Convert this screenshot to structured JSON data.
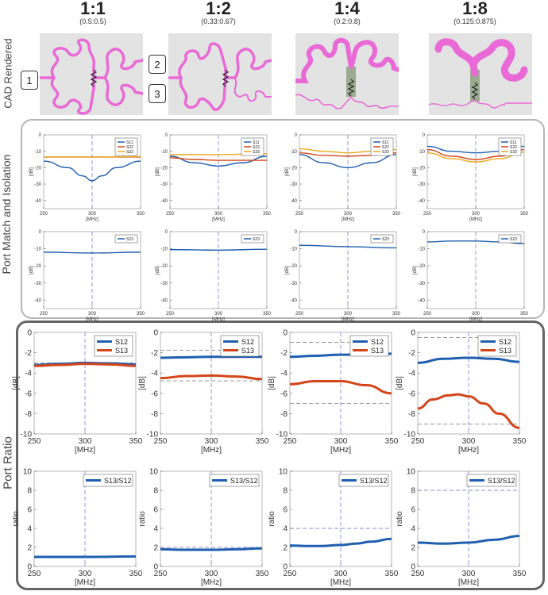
{
  "columns": [
    {
      "ratio": "1:1",
      "split": "(0.5:0.5)"
    },
    {
      "ratio": "1:2",
      "split": "(0.33:0.67)"
    },
    {
      "ratio": "1:4",
      "split": "(0.2:0.8)"
    },
    {
      "ratio": "1:8",
      "split": "(0.125:0.875)"
    }
  ],
  "rows": {
    "cad_label": "CAD Rendered",
    "match_label": "Port Match and Isolation",
    "ratio_label": "Port Ratio"
  },
  "ports": [
    "1",
    "2",
    "3"
  ],
  "colors": {
    "S11": "#1f5fb0",
    "S22": "#d4451a",
    "S33": "#e8a81c",
    "S23": "#1f5fb0",
    "S12": "#1f5fb0",
    "S13": "#d4451a",
    "ratio": "#1f5fb0",
    "trace": "#e96ad6",
    "guide": "#8888dd",
    "panel_border_1": "#b5b5b5",
    "panel_border_2": "#666666"
  },
  "chart_data": [
    {
      "id": "match_1_1",
      "type": "line",
      "xlabel": "[MHz]",
      "ylabel": "[dB]",
      "xlim": [
        250,
        350
      ],
      "ylim": [
        -45,
        0
      ],
      "xticks": [
        250,
        300,
        350
      ],
      "yticks": [
        0,
        -10,
        -20,
        -30,
        -40
      ],
      "vline": 300,
      "legend": "top-right",
      "series": [
        {
          "name": "S11",
          "x": [
            250,
            275,
            290,
            300,
            310,
            325,
            350
          ],
          "y": [
            -16,
            -20,
            -25,
            -28,
            -25,
            -20,
            -16
          ]
        },
        {
          "name": "S22",
          "x": [
            250,
            300,
            350
          ],
          "y": [
            -13.5,
            -13.5,
            -13.5
          ]
        },
        {
          "name": "S33",
          "x": [
            250,
            300,
            350
          ],
          "y": [
            -13.5,
            -13.5,
            -13.3
          ]
        }
      ]
    },
    {
      "id": "match_1_2",
      "type": "line",
      "xlabel": "[MHz]",
      "ylabel": "[dB]",
      "xlim": [
        250,
        350
      ],
      "ylim": [
        -45,
        0
      ],
      "xticks": [
        250,
        300,
        350
      ],
      "yticks": [
        0,
        -10,
        -20,
        -30,
        -40
      ],
      "vline": 300,
      "legend": "top-right",
      "series": [
        {
          "name": "S11",
          "x": [
            250,
            275,
            300,
            325,
            350
          ],
          "y": [
            -13,
            -17,
            -19,
            -17,
            -13
          ]
        },
        {
          "name": "S22",
          "x": [
            250,
            275,
            300,
            325,
            350
          ],
          "y": [
            -14,
            -15,
            -15.5,
            -15.5,
            -15.5
          ]
        },
        {
          "name": "S33",
          "x": [
            250,
            300,
            350
          ],
          "y": [
            -12,
            -12,
            -11.5
          ]
        }
      ]
    },
    {
      "id": "match_1_4",
      "type": "line",
      "xlabel": "[MHz]",
      "ylabel": "[dB]",
      "xlim": [
        250,
        350
      ],
      "ylim": [
        -45,
        0
      ],
      "xticks": [
        250,
        300,
        350
      ],
      "yticks": [
        0,
        -10,
        -20,
        -30,
        -40
      ],
      "vline": 300,
      "legend": "top-right",
      "series": [
        {
          "name": "S11",
          "x": [
            250,
            275,
            300,
            325,
            350
          ],
          "y": [
            -12,
            -17,
            -20,
            -17,
            -12
          ]
        },
        {
          "name": "S22",
          "x": [
            250,
            275,
            300,
            325,
            350
          ],
          "y": [
            -11,
            -12.5,
            -13,
            -12.5,
            -11
          ]
        },
        {
          "name": "S33",
          "x": [
            250,
            275,
            300,
            325,
            350
          ],
          "y": [
            -8.5,
            -10,
            -11,
            -10,
            -9
          ]
        }
      ]
    },
    {
      "id": "match_1_8",
      "type": "line",
      "xlabel": "[MHz]",
      "ylabel": "[dB]",
      "xlim": [
        250,
        350
      ],
      "ylim": [
        -45,
        0
      ],
      "xticks": [
        250,
        300,
        350
      ],
      "yticks": [
        0,
        -10,
        -20,
        -30,
        -40
      ],
      "vline": 300,
      "legend": "top-right",
      "series": [
        {
          "name": "S11",
          "x": [
            250,
            275,
            300,
            325,
            350
          ],
          "y": [
            -7,
            -10,
            -11,
            -10,
            -7
          ]
        },
        {
          "name": "S22",
          "x": [
            250,
            275,
            300,
            325,
            350
          ],
          "y": [
            -9,
            -13,
            -15,
            -13,
            -9
          ]
        },
        {
          "name": "S33",
          "x": [
            250,
            275,
            300,
            325,
            350
          ],
          "y": [
            -11,
            -14.5,
            -16.5,
            -14.5,
            -10.5
          ]
        }
      ]
    },
    {
      "id": "iso_1_1",
      "type": "line",
      "xlabel": "[MHz]",
      "ylabel": "[dB]",
      "xlim": [
        250,
        350
      ],
      "ylim": [
        -45,
        0
      ],
      "xticks": [
        250,
        300,
        350
      ],
      "yticks": [
        0,
        -10,
        -20,
        -30,
        -40
      ],
      "vline": 300,
      "legend": "top-right",
      "series": [
        {
          "name": "S23",
          "x": [
            250,
            300,
            350
          ],
          "y": [
            -12,
            -12.5,
            -12
          ]
        }
      ]
    },
    {
      "id": "iso_1_2",
      "type": "line",
      "xlabel": "[MHz]",
      "ylabel": "[dB]",
      "xlim": [
        250,
        350
      ],
      "ylim": [
        -45,
        0
      ],
      "xticks": [
        250,
        300,
        350
      ],
      "yticks": [
        0,
        -10,
        -20,
        -30,
        -40
      ],
      "vline": 300,
      "legend": "top-right",
      "series": [
        {
          "name": "S23",
          "x": [
            250,
            300,
            350
          ],
          "y": [
            -10.5,
            -10.8,
            -10.3
          ]
        }
      ]
    },
    {
      "id": "iso_1_4",
      "type": "line",
      "xlabel": "[MHz]",
      "ylabel": "[dB]",
      "xlim": [
        250,
        350
      ],
      "ylim": [
        -45,
        0
      ],
      "xticks": [
        250,
        300,
        350
      ],
      "yticks": [
        0,
        -10,
        -20,
        -30,
        -40
      ],
      "vline": 300,
      "legend": "top-right",
      "series": [
        {
          "name": "S23",
          "x": [
            250,
            300,
            350
          ],
          "y": [
            -8,
            -8.8,
            -9.5
          ]
        }
      ]
    },
    {
      "id": "iso_1_8",
      "type": "line",
      "xlabel": "[MHz]",
      "ylabel": "[dB]",
      "xlim": [
        250,
        350
      ],
      "ylim": [
        -45,
        0
      ],
      "xticks": [
        250,
        300,
        350
      ],
      "yticks": [
        0,
        -10,
        -20,
        -30,
        -40
      ],
      "vline": 300,
      "legend": "top-right",
      "series": [
        {
          "name": "S23",
          "x": [
            250,
            275,
            300,
            325,
            350
          ],
          "y": [
            -6,
            -5.5,
            -5.5,
            -6,
            -7
          ]
        }
      ]
    },
    {
      "id": "split_1_1",
      "type": "line",
      "xlabel": "[MHz]",
      "ylabel": "[dB]",
      "xlim": [
        250,
        350
      ],
      "ylim": [
        -10,
        0
      ],
      "xticks": [
        250,
        300,
        350
      ],
      "yticks": [
        0,
        -2,
        -4,
        -6,
        -8,
        -10
      ],
      "vline": 300,
      "hlines": [
        -3.0,
        -3.0
      ],
      "legend": "top-right",
      "series": [
        {
          "name": "S12",
          "x": [
            250,
            275,
            300,
            325,
            350
          ],
          "y": [
            -3.2,
            -3.1,
            -3.0,
            -3.05,
            -3.15
          ]
        },
        {
          "name": "S13",
          "x": [
            250,
            275,
            300,
            325,
            350
          ],
          "y": [
            -3.3,
            -3.2,
            -3.1,
            -3.15,
            -3.3
          ]
        }
      ]
    },
    {
      "id": "split_1_2",
      "type": "line",
      "xlabel": "[MHz]",
      "ylabel": "[dB]",
      "xlim": [
        250,
        350
      ],
      "ylim": [
        -10,
        0
      ],
      "xticks": [
        250,
        300,
        350
      ],
      "yticks": [
        0,
        -2,
        -4,
        -6,
        -8,
        -10
      ],
      "vline": 300,
      "hlines": [
        -1.76,
        -4.77
      ],
      "legend": "top-right",
      "series": [
        {
          "name": "S12",
          "x": [
            250,
            275,
            300,
            325,
            350
          ],
          "y": [
            -2.5,
            -2.45,
            -2.4,
            -2.4,
            -2.4
          ]
        },
        {
          "name": "S13",
          "x": [
            250,
            275,
            300,
            325,
            350
          ],
          "y": [
            -4.5,
            -4.3,
            -4.25,
            -4.35,
            -4.6
          ]
        }
      ]
    },
    {
      "id": "split_1_4",
      "type": "line",
      "xlabel": "[MHz]",
      "ylabel": "[dB]",
      "xlim": [
        250,
        350
      ],
      "ylim": [
        -10,
        0
      ],
      "xticks": [
        250,
        300,
        350
      ],
      "yticks": [
        0,
        -2,
        -4,
        -6,
        -8,
        -10
      ],
      "vline": 300,
      "hlines": [
        -0.97,
        -6.99
      ],
      "legend": "top-right",
      "series": [
        {
          "name": "S12",
          "x": [
            250,
            275,
            300,
            325,
            350
          ],
          "y": [
            -2.4,
            -2.3,
            -2.2,
            -2.15,
            -2.1
          ]
        },
        {
          "name": "S13",
          "x": [
            250,
            275,
            300,
            325,
            350
          ],
          "y": [
            -5.1,
            -4.8,
            -4.8,
            -5.2,
            -6.0
          ]
        }
      ]
    },
    {
      "id": "split_1_8",
      "type": "line",
      "xlabel": "[MHz]",
      "ylabel": "[dB]",
      "xlim": [
        250,
        350
      ],
      "ylim": [
        -10,
        0
      ],
      "xticks": [
        250,
        300,
        350
      ],
      "yticks": [
        0,
        -2,
        -4,
        -6,
        -8,
        -10
      ],
      "vline": 300,
      "hlines": [
        -0.51,
        -9.03
      ],
      "legend": "top-right",
      "series": [
        {
          "name": "S12",
          "x": [
            250,
            275,
            300,
            325,
            350
          ],
          "y": [
            -3.0,
            -2.6,
            -2.5,
            -2.6,
            -2.9
          ]
        },
        {
          "name": "S13",
          "x": [
            250,
            265,
            280,
            290,
            300,
            315,
            330,
            350
          ],
          "y": [
            -7.5,
            -6.6,
            -6.2,
            -6.1,
            -6.3,
            -7.0,
            -8.0,
            -9.4
          ]
        }
      ]
    },
    {
      "id": "pr_1_1",
      "type": "line",
      "xlabel": "[MHz]",
      "ylabel": "ratio",
      "xlim": [
        250,
        350
      ],
      "ylim": [
        0,
        10
      ],
      "xticks": [
        250,
        300,
        350
      ],
      "yticks": [
        0,
        2,
        4,
        6,
        8,
        10
      ],
      "vline": 300,
      "hlines": [
        1
      ],
      "legend": "top-right",
      "series": [
        {
          "name": "S13/S12",
          "x": [
            250,
            300,
            350
          ],
          "y": [
            1.0,
            1.0,
            1.05
          ]
        }
      ]
    },
    {
      "id": "pr_1_2",
      "type": "line",
      "xlabel": "[MHz]",
      "ylabel": "ratio",
      "xlim": [
        250,
        350
      ],
      "ylim": [
        0,
        10
      ],
      "xticks": [
        250,
        300,
        350
      ],
      "yticks": [
        0,
        2,
        4,
        6,
        8,
        10
      ],
      "vline": 300,
      "hlines": [
        2
      ],
      "legend": "top-right",
      "series": [
        {
          "name": "S13/S12",
          "x": [
            250,
            275,
            300,
            325,
            350
          ],
          "y": [
            1.8,
            1.75,
            1.75,
            1.8,
            1.9
          ]
        }
      ]
    },
    {
      "id": "pr_1_4",
      "type": "line",
      "xlabel": "[MHz]",
      "ylabel": "ratio",
      "xlim": [
        250,
        350
      ],
      "ylim": [
        0,
        10
      ],
      "xticks": [
        250,
        300,
        350
      ],
      "yticks": [
        0,
        2,
        4,
        6,
        8,
        10
      ],
      "vline": 300,
      "hlines": [
        4
      ],
      "legend": "top-right",
      "series": [
        {
          "name": "S13/S12",
          "x": [
            250,
            265,
            280,
            300,
            315,
            330,
            350
          ],
          "y": [
            2.2,
            2.15,
            2.15,
            2.25,
            2.4,
            2.6,
            2.9
          ]
        }
      ]
    },
    {
      "id": "pr_1_8",
      "type": "line",
      "xlabel": "[MHz]",
      "ylabel": "ratio",
      "xlim": [
        250,
        350
      ],
      "ylim": [
        0,
        10
      ],
      "xticks": [
        250,
        300,
        350
      ],
      "yticks": [
        0,
        2,
        4,
        6,
        8,
        10
      ],
      "vline": 300,
      "hlines": [
        8
      ],
      "legend": "top-right",
      "series": [
        {
          "name": "S13/S12",
          "x": [
            250,
            275,
            300,
            325,
            350
          ],
          "y": [
            2.5,
            2.4,
            2.5,
            2.8,
            3.2
          ]
        }
      ]
    }
  ]
}
